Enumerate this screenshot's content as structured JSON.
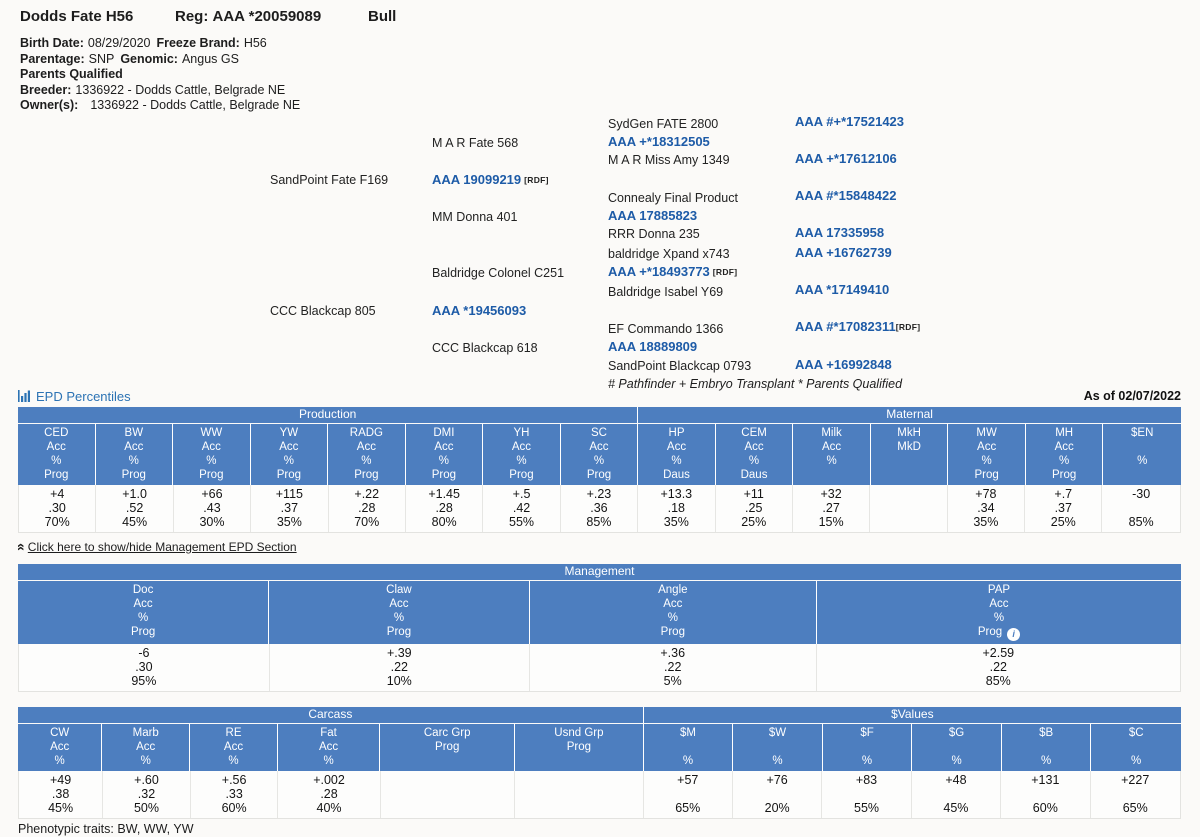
{
  "header": {
    "name": "Dodds Fate H56",
    "reg_label": "Reg:",
    "reg_value": "AAA *20059089",
    "sex": "Bull"
  },
  "info": {
    "birth_date_label": "Birth Date:",
    "birth_date": "08/29/2020",
    "freeze_brand_label": "Freeze Brand:",
    "freeze_brand": "H56",
    "parentage_label": "Parentage:",
    "parentage": "SNP",
    "genomic_label": "Genomic:",
    "genomic": "Angus GS",
    "parents_qualified": "Parents Qualified",
    "breeder_label": "Breeder:",
    "breeder": "1336922 - Dodds Cattle, Belgrade NE",
    "owner_label": "Owner(s):",
    "owner": "1336922 - Dodds Cattle, Belgrade NE"
  },
  "pedigree": {
    "legend": "# Pathfinder + Embryo Transplant * Parents Qualified",
    "sire": {
      "name": "SandPoint Fate F169",
      "reg": "AAA 19099219",
      "rdf": "[RDF]",
      "sire": {
        "name": "M A R Fate 568",
        "reg": "AAA +*18312505",
        "sire": {
          "name": "SydGen FATE 2800",
          "reg": "AAA #+*17521423"
        },
        "dam": {
          "name": "M A R Miss Amy 1349",
          "reg": "AAA +*17612106"
        }
      },
      "dam": {
        "name": "MM Donna 401",
        "reg": "AAA 17885823",
        "sire": {
          "name": "Connealy Final Product",
          "reg": "AAA #*15848422"
        },
        "dam": {
          "name": "RRR Donna 235",
          "reg": "AAA 17335958"
        }
      }
    },
    "dam": {
      "name": "CCC Blackcap 805",
      "reg": "AAA *19456093",
      "sire": {
        "name": "Baldridge Colonel C251",
        "reg": "AAA +*18493773",
        "rdf": "[RDF]",
        "sire": {
          "name": "baldridge Xpand x743",
          "reg": "AAA +16762739"
        },
        "dam": {
          "name": "Baldridge Isabel Y69",
          "reg": "AAA *17149410"
        }
      },
      "dam": {
        "name": "CCC Blackcap 618",
        "reg": "AAA 18889809",
        "sire": {
          "name": "EF Commando 1366",
          "reg": "AAA #*17082311",
          "rdf": "[RDF]"
        },
        "dam": {
          "name": "SandPoint Blackcap 0793",
          "reg": "AAA +16992848"
        }
      }
    }
  },
  "epd": {
    "section_title": "EPD Percentiles",
    "as_of": "As of 02/07/2022",
    "toggle_link": "Click here to show/hide Management EPD Section",
    "phenotypic_label": "Phenotypic traits:",
    "phenotypic_value": "BW, WW, YW",
    "tables": {
      "production_maternal": {
        "groups": [
          {
            "label": "Production",
            "span": 8
          },
          {
            "label": "Maternal",
            "span": 7
          }
        ],
        "columns": [
          {
            "header": [
              "CED",
              "Acc",
              "%",
              "Prog"
            ],
            "values": [
              "+4",
              ".30",
              "70%"
            ]
          },
          {
            "header": [
              "BW",
              "Acc",
              "%",
              "Prog"
            ],
            "values": [
              "+1.0",
              ".52",
              "45%"
            ]
          },
          {
            "header": [
              "WW",
              "Acc",
              "%",
              "Prog"
            ],
            "values": [
              "+66",
              ".43",
              "30%"
            ]
          },
          {
            "header": [
              "YW",
              "Acc",
              "%",
              "Prog"
            ],
            "values": [
              "+115",
              ".37",
              "35%"
            ]
          },
          {
            "header": [
              "RADG",
              "Acc",
              "%",
              "Prog"
            ],
            "values": [
              "+.22",
              ".28",
              "70%"
            ]
          },
          {
            "header": [
              "DMI",
              "Acc",
              "%",
              "Prog"
            ],
            "values": [
              "+1.45",
              ".28",
              "80%"
            ]
          },
          {
            "header": [
              "YH",
              "Acc",
              "%",
              "Prog"
            ],
            "values": [
              "+.5",
              ".42",
              "55%"
            ]
          },
          {
            "header": [
              "SC",
              "Acc",
              "%",
              "Prog"
            ],
            "values": [
              "+.23",
              ".36",
              "85%"
            ]
          },
          {
            "header": [
              "HP",
              "Acc",
              "%",
              "Daus"
            ],
            "values": [
              "+13.3",
              ".18",
              "35%"
            ]
          },
          {
            "header": [
              "CEM",
              "Acc",
              "%",
              "Daus"
            ],
            "values": [
              "+11",
              ".25",
              "25%"
            ]
          },
          {
            "header": [
              "Milk",
              "Acc",
              "%",
              ""
            ],
            "values": [
              "+32",
              ".27",
              "15%"
            ]
          },
          {
            "header": [
              "MkH",
              "MkD",
              "",
              ""
            ],
            "values": [
              "",
              "",
              ""
            ]
          },
          {
            "header": [
              "MW",
              "Acc",
              "%",
              "Prog"
            ],
            "values": [
              "+78",
              ".34",
              "35%"
            ]
          },
          {
            "header": [
              "MH",
              "Acc",
              "%",
              "Prog"
            ],
            "values": [
              "+.7",
              ".37",
              "25%"
            ]
          },
          {
            "header": [
              "$EN",
              "",
              "%",
              ""
            ],
            "values": [
              "-30",
              "",
              "85%"
            ]
          }
        ]
      },
      "management": {
        "groups": [
          {
            "label": "Management",
            "span": 4
          }
        ],
        "columns": [
          {
            "header": [
              "Doc",
              "Acc",
              "%",
              "Prog"
            ],
            "values": [
              "-6",
              ".30",
              "95%"
            ]
          },
          {
            "header": [
              "Claw",
              "Acc",
              "%",
              "Prog"
            ],
            "values": [
              "+.39",
              ".22",
              "10%"
            ]
          },
          {
            "header": [
              "Angle",
              "Acc",
              "%",
              "Prog"
            ],
            "values": [
              "+.36",
              ".22",
              "5%"
            ]
          },
          {
            "header": [
              "PAP",
              "Acc",
              "%",
              "Prog"
            ],
            "values": [
              "+2.59",
              ".22",
              "85%"
            ],
            "info": true
          }
        ]
      },
      "carcass_values": {
        "groups": [
          {
            "label": "Carcass",
            "span": 6
          },
          {
            "label": "$Values",
            "span": 6
          }
        ],
        "columns": [
          {
            "header": [
              "CW",
              "Acc",
              "%"
            ],
            "values": [
              "+49",
              ".38",
              "45%"
            ]
          },
          {
            "header": [
              "Marb",
              "Acc",
              "%"
            ],
            "values": [
              "+.60",
              ".32",
              "50%"
            ]
          },
          {
            "header": [
              "RE",
              "Acc",
              "%"
            ],
            "values": [
              "+.56",
              ".33",
              "60%"
            ]
          },
          {
            "header": [
              "Fat",
              "Acc",
              "%"
            ],
            "values": [
              "+.002",
              ".28",
              "40%"
            ]
          },
          {
            "header": [
              "Carc Grp",
              "Prog",
              ""
            ],
            "values": [
              "",
              "",
              ""
            ]
          },
          {
            "header": [
              "Usnd Grp",
              "Prog",
              ""
            ],
            "values": [
              "",
              "",
              ""
            ]
          },
          {
            "header": [
              "$M",
              "",
              "%"
            ],
            "values": [
              "+57",
              "",
              "65%"
            ]
          },
          {
            "header": [
              "$W",
              "",
              "%"
            ],
            "values": [
              "+76",
              "",
              "20%"
            ]
          },
          {
            "header": [
              "$F",
              "",
              "%"
            ],
            "values": [
              "+83",
              "",
              "55%"
            ]
          },
          {
            "header": [
              "$G",
              "",
              "%"
            ],
            "values": [
              "+48",
              "",
              "45%"
            ]
          },
          {
            "header": [
              "$B",
              "",
              "%"
            ],
            "values": [
              "+131",
              "",
              "60%"
            ]
          },
          {
            "header": [
              "$C",
              "",
              "%"
            ],
            "values": [
              "+227",
              "",
              "65%"
            ]
          }
        ]
      }
    }
  },
  "icons": {
    "bar_chart": "svg-bars",
    "collapse_chevrons": "«",
    "info": "i"
  },
  "colors": {
    "table_header_blue": "#4d7ebf",
    "reg_link_blue": "#1d5ba7",
    "section_title_blue": "#2c73b4"
  }
}
